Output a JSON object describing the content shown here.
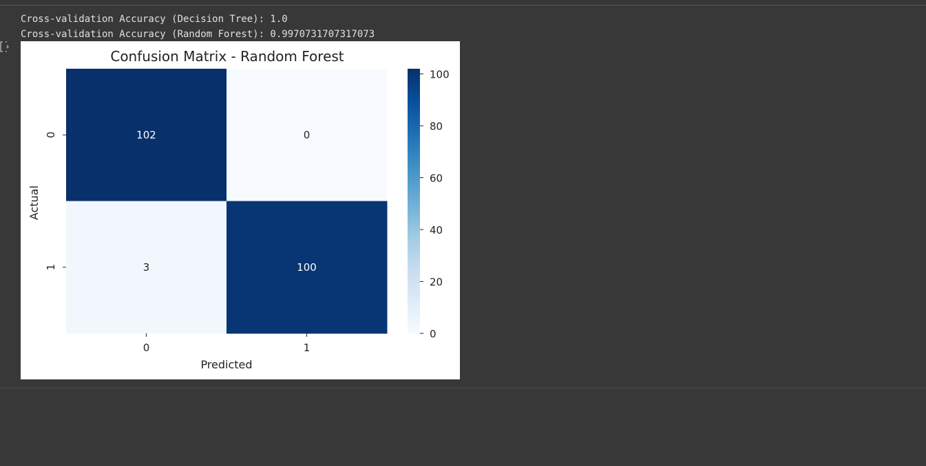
{
  "output": {
    "lines": [
      "Cross-validation Accuracy (Decision Tree): 1.0",
      "Cross-validation Accuracy (Random Forest): 0.9970731707317073"
    ]
  },
  "chart_data": {
    "type": "heatmap",
    "title": "Confusion Matrix - Random Forest",
    "x_label": "Predicted",
    "y_label": "Actual",
    "x_categories": [
      "0",
      "1"
    ],
    "y_categories": [
      "0",
      "1"
    ],
    "values": [
      [
        102,
        0
      ],
      [
        3,
        100
      ]
    ],
    "clim": [
      0,
      102
    ],
    "colorbar_ticks": [
      0,
      20,
      40,
      60,
      80,
      100
    ],
    "colormap": [
      "#f7fbff",
      "#deebf7",
      "#c6dbef",
      "#9ecae1",
      "#6baed6",
      "#4292c6",
      "#2171b5",
      "#08519c",
      "#08306b"
    ]
  }
}
